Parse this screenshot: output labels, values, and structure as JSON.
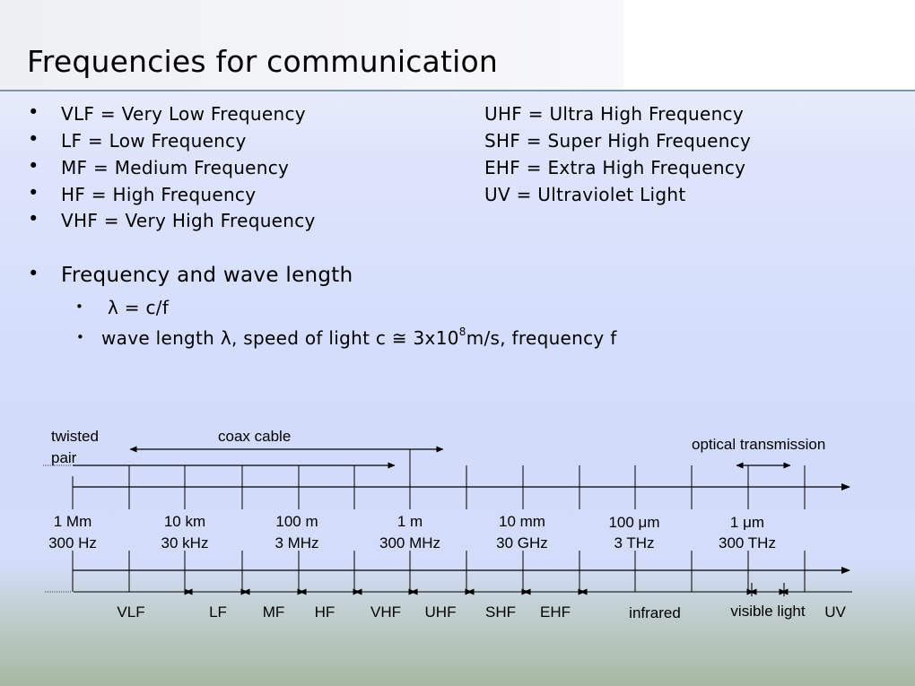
{
  "slide": {
    "title": "Frequencies for communication"
  },
  "bands_left": [
    "VLF = Very Low Frequency",
    "LF = Low Frequency",
    "MF = Medium Frequency",
    "HF = High Frequency",
    "VHF = Very High Frequency"
  ],
  "bands_right": [
    "UHF = Ultra High Frequency",
    "SHF = Super High Frequency",
    "EHF = Extra High Frequency",
    "UV = Ultraviolet Light"
  ],
  "wave": {
    "heading": "Frequency and wave length",
    "formula": "λ = c/f",
    "desc_prefix": "wave length λ, speed of light c ≅ 3x10",
    "desc_exp": "8",
    "desc_suffix": "m/s, frequency f"
  },
  "diagram": {
    "media": {
      "twisted_line1": "twisted",
      "twisted_line2": "pair",
      "coax": "coax cable",
      "optical": "optical transmission"
    },
    "scale": [
      {
        "wavelength": "1 Mm",
        "frequency": "300 Hz"
      },
      {
        "wavelength": "10 km",
        "frequency": "30 kHz"
      },
      {
        "wavelength": "100 m",
        "frequency": "3 MHz"
      },
      {
        "wavelength": "1 m",
        "frequency": "300 MHz"
      },
      {
        "wavelength": "10 mm",
        "frequency": "30 GHz"
      },
      {
        "wavelength": "100 μm",
        "frequency": "3 THz"
      },
      {
        "wavelength": "1 μm",
        "frequency": "300 THz"
      }
    ],
    "bands": [
      "VLF",
      "LF",
      "MF",
      "HF",
      "VHF",
      "UHF",
      "SHF",
      "EHF",
      "infrared",
      "visible light",
      "UV"
    ]
  }
}
